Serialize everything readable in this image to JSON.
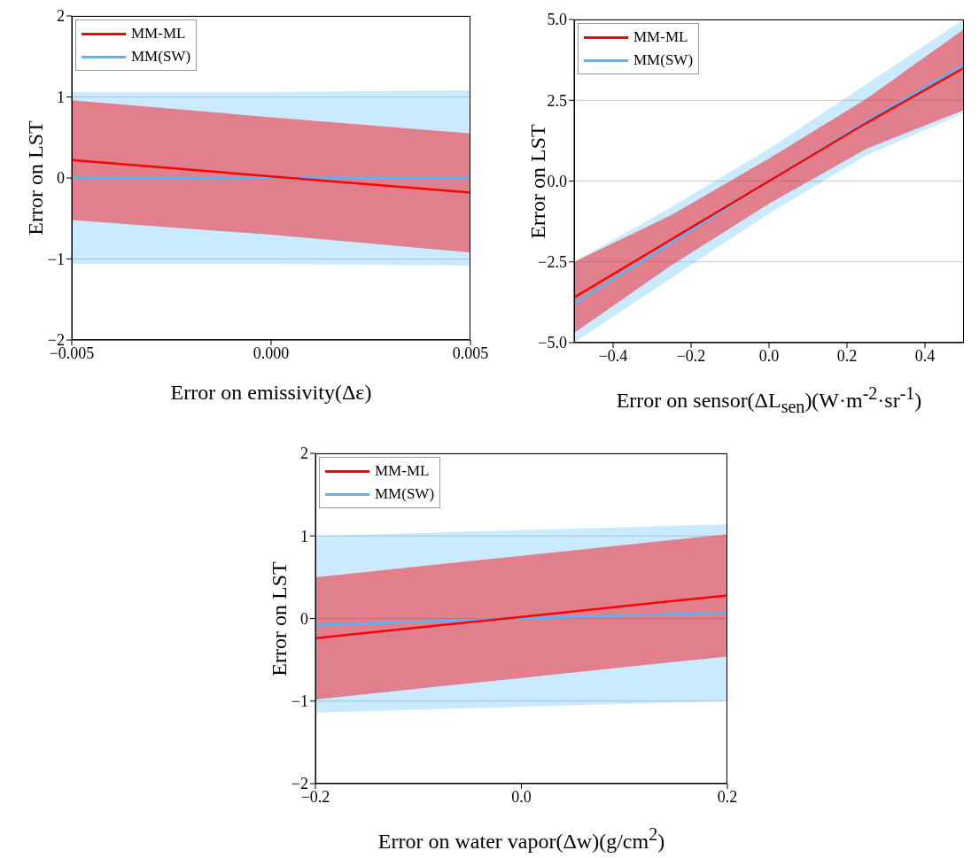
{
  "chart_data": [
    {
      "type": "line",
      "xlabel": "Error on emissivity(Δε)",
      "ylabel": "Error on LST",
      "x": [
        -0.005,
        0,
        0.005
      ],
      "xlim": [
        -0.005,
        0.005
      ],
      "xticks": [
        {
          "value": -0.005,
          "label": "−0.005"
        },
        {
          "value": 0,
          "label": "0.000"
        },
        {
          "value": 0.005,
          "label": "0.005"
        }
      ],
      "ylim": [
        -2,
        2
      ],
      "yticks": [
        {
          "value": -2,
          "label": "−2"
        },
        {
          "value": -1,
          "label": "−1"
        },
        0,
        1,
        2
      ],
      "grid": "y",
      "legend": "top left",
      "line_style": "solid",
      "series": [
        {
          "name": "MM(SW)",
          "color": "#4db8ff",
          "values": [
            0,
            0,
            0
          ],
          "lower": [
            -1.06,
            -1.06,
            -1.08
          ],
          "upper": [
            1.06,
            1.06,
            1.08
          ]
        },
        {
          "name": "MM-ML",
          "color": "#ff0000",
          "values": [
            0.22,
            0.02,
            -0.18
          ],
          "lower": [
            -0.52,
            -0.7,
            -0.92
          ],
          "upper": [
            0.96,
            0.75,
            0.55
          ]
        }
      ]
    },
    {
      "type": "line",
      "xlabel": "Error on sensor(ΔL$_{sen}$)(W·m$^{-2}$·sr$^{-1}$)",
      "ylabel": "Error on LST",
      "x": [
        -0.5,
        -0.25,
        0,
        0.25,
        0.5
      ],
      "xlim": [
        -0.5,
        0.5
      ],
      "xticks": [
        {
          "value": -0.4,
          "label": "−0.4"
        },
        {
          "value": -0.2,
          "label": "−0.2"
        },
        {
          "value": 0,
          "label": "0.0"
        },
        {
          "value": 0.2,
          "label": "0.2"
        },
        {
          "value": 0.4,
          "label": "0.4"
        }
      ],
      "ylim": [
        -5,
        5
      ],
      "yticks": [
        {
          "value": -5,
          "label": "−5.0"
        },
        {
          "value": -2.5,
          "label": "−2.5"
        },
        {
          "value": 0,
          "label": "0.0"
        },
        {
          "value": 2.5,
          "label": "2.5"
        },
        {
          "value": 5,
          "label": "5.0"
        }
      ],
      "grid": "y",
      "legend": "top left",
      "line_style": "solid",
      "series": [
        {
          "name": "MM(SW)",
          "color": "#4db8ff",
          "values": [
            -3.8,
            -1.9,
            0,
            1.85,
            3.6
          ],
          "lower": [
            -5,
            -3,
            -1,
            0.8,
            2.1
          ],
          "upper": [
            -2.5,
            -0.8,
            1,
            3,
            5
          ]
        },
        {
          "name": "MM-ML",
          "color": "#ff0000",
          "values": [
            -3.6,
            -1.8,
            0,
            1.8,
            3.5
          ],
          "lower": [
            -4.7,
            -2.6,
            -0.7,
            1,
            2.2
          ],
          "upper": [
            -2.5,
            -1.05,
            0.7,
            2.55,
            4.7
          ]
        }
      ]
    },
    {
      "type": "line",
      "xlabel": "Error on water vapor(Δw)(g/cm$^{2}$)",
      "ylabel": "Error on LST",
      "x": [
        -0.2,
        0,
        0.2
      ],
      "xlim": [
        -0.2,
        0.2
      ],
      "xticks": [
        {
          "value": -0.2,
          "label": "−0.2"
        },
        {
          "value": 0,
          "label": "0.0"
        },
        0.2
      ],
      "ylim": [
        -2,
        2
      ],
      "yticks": [
        {
          "value": -2,
          "label": "−2"
        },
        {
          "value": -1,
          "label": "−1"
        },
        0,
        1,
        2
      ],
      "grid": "y",
      "legend": "top left",
      "line_style": "solid",
      "series": [
        {
          "name": "MM(SW)",
          "color": "#4db8ff",
          "values": [
            -0.08,
            0,
            0.07
          ],
          "lower": [
            -1.14,
            -1.07,
            -1
          ],
          "upper": [
            1,
            1.07,
            1.14
          ]
        },
        {
          "name": "MM-ML",
          "color": "#ff0000",
          "values": [
            -0.24,
            0.02,
            0.28
          ],
          "lower": [
            -0.98,
            -0.72,
            -0.46
          ],
          "upper": [
            0.5,
            0.76,
            1.02
          ]
        }
      ]
    }
  ]
}
